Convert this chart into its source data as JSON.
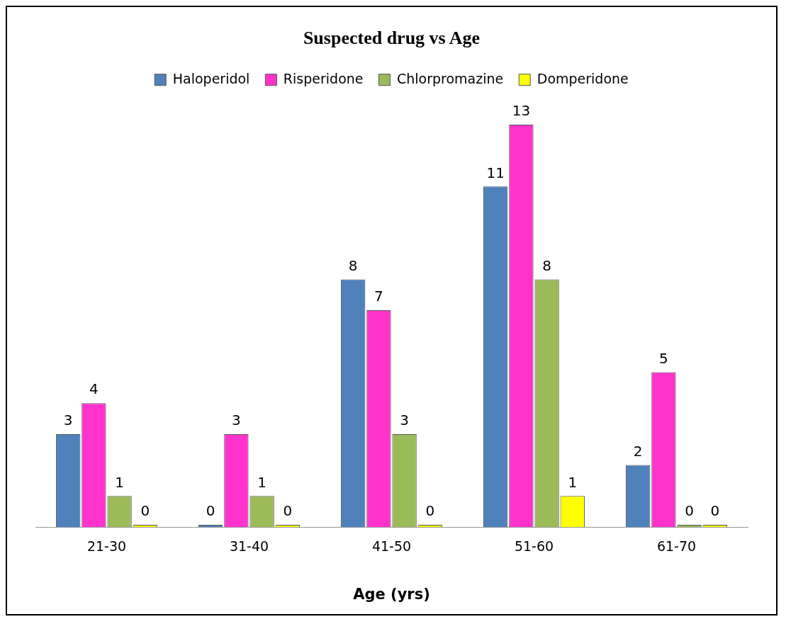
{
  "chart_data": {
    "type": "bar",
    "title": "Suspected drug vs Age",
    "xlabel": "Age (yrs)",
    "categories": [
      "21-30",
      "31-40",
      "41-50",
      "51-60",
      "61-70"
    ],
    "series": [
      {
        "name": "Haloperidol",
        "color": "#4f81bd",
        "values": [
          3,
          0,
          8,
          11,
          2
        ]
      },
      {
        "name": "Risperidone",
        "color": "#ff33cc",
        "values": [
          4,
          3,
          7,
          13,
          5
        ]
      },
      {
        "name": "Chlorpromazine",
        "color": "#9bbb59",
        "values": [
          1,
          1,
          3,
          8,
          0
        ]
      },
      {
        "name": "Domperidone",
        "color": "#ffff00",
        "values": [
          0,
          0,
          0,
          1,
          0
        ]
      }
    ],
    "data_labels": true,
    "legend": "top",
    "grid": false
  }
}
